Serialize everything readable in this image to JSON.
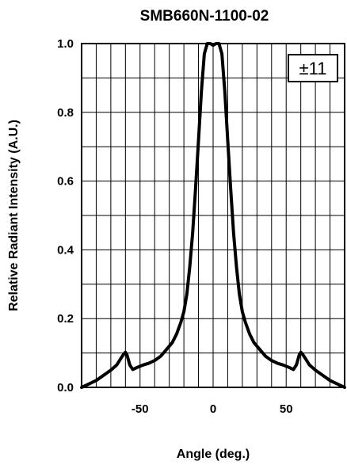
{
  "chart_data": {
    "type": "line",
    "title": "SMB660N-1100-02",
    "xlabel": "Angle (deg.)",
    "ylabel": "Relative Radiant Intensity (A.U.)",
    "xlim": [
      -90,
      90
    ],
    "ylim": [
      0.0,
      1.0
    ],
    "x_ticks": [
      -50,
      0,
      50
    ],
    "y_ticks": [
      0.0,
      0.2,
      0.4,
      0.6,
      0.8,
      1.0
    ],
    "x_tick_labels": [
      "-50",
      "0",
      "50"
    ],
    "y_tick_labels": [
      "0.0",
      "0.2",
      "0.4",
      "0.6",
      "0.8",
      "1.0"
    ],
    "grid": true,
    "x_grid_step": 10,
    "y_grid_step": 0.1,
    "annotation": "±11",
    "series": [
      {
        "color": "#000000",
        "x": [
          -90,
          -85,
          -80,
          -75,
          -70,
          -66,
          -63,
          -61,
          -60,
          -59,
          -57,
          -55,
          -52,
          -48,
          -44,
          -40,
          -36,
          -32,
          -28,
          -25,
          -22,
          -20,
          -18,
          -16,
          -14,
          -12,
          -10,
          -8,
          -6,
          -4,
          -2,
          0,
          2,
          4,
          6,
          8,
          10,
          12,
          14,
          16,
          18,
          20,
          22,
          25,
          28,
          32,
          36,
          40,
          44,
          48,
          52,
          55,
          57,
          59,
          60,
          61,
          63,
          66,
          70,
          75,
          80,
          85,
          90
        ],
        "y": [
          0.0,
          0.01,
          0.02,
          0.035,
          0.05,
          0.065,
          0.085,
          0.098,
          0.102,
          0.095,
          0.065,
          0.052,
          0.058,
          0.065,
          0.07,
          0.078,
          0.09,
          0.11,
          0.13,
          0.155,
          0.19,
          0.22,
          0.27,
          0.35,
          0.45,
          0.58,
          0.72,
          0.86,
          0.97,
          1.0,
          1.0,
          0.995,
          1.0,
          1.0,
          0.97,
          0.86,
          0.72,
          0.58,
          0.45,
          0.35,
          0.27,
          0.22,
          0.19,
          0.155,
          0.13,
          0.11,
          0.09,
          0.078,
          0.07,
          0.065,
          0.058,
          0.052,
          0.065,
          0.095,
          0.102,
          0.098,
          0.085,
          0.065,
          0.05,
          0.035,
          0.02,
          0.01,
          0.0
        ]
      }
    ]
  }
}
